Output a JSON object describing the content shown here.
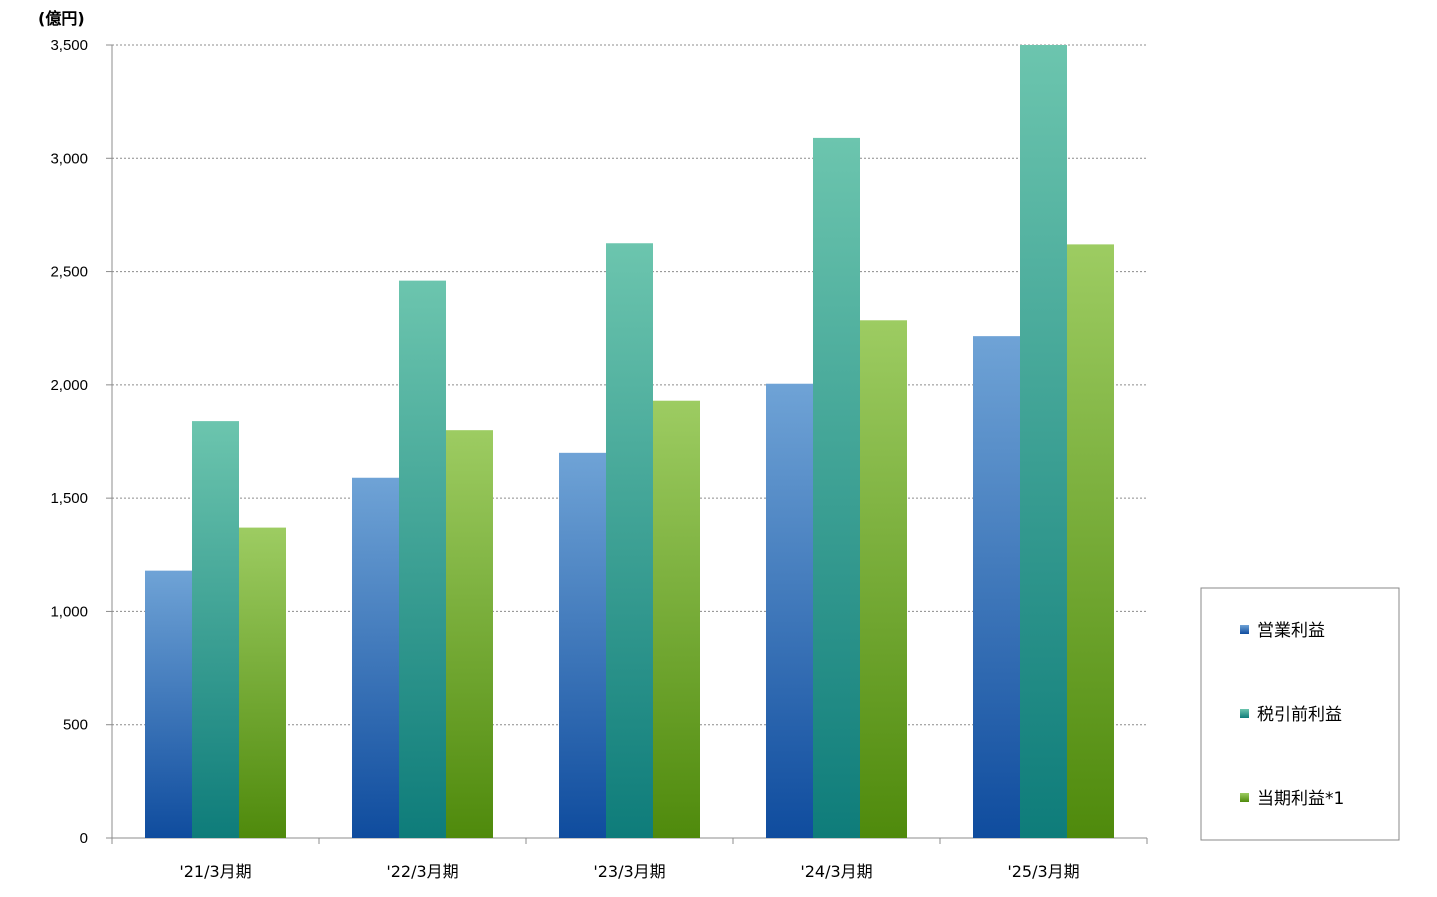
{
  "chart_data": {
    "type": "bar",
    "title": "",
    "unit_label": "(億円)",
    "xlabel": "",
    "ylabel": "",
    "categories": [
      "'21/3月期",
      "'22/3月期",
      "'23/3月期",
      "'24/3月期",
      "'25/3月期"
    ],
    "series": [
      {
        "name": "営業利益",
        "values": [
          1180,
          1590,
          1700,
          2005,
          2215
        ],
        "color_top": "#6fa3d6",
        "color_bottom": "#0f4c9e"
      },
      {
        "name": "税引前利益",
        "values": [
          1840,
          2460,
          2625,
          3090,
          3500
        ],
        "color_top": "#6cc5ae",
        "color_bottom": "#0e7c7a"
      },
      {
        "name": "当期利益*1",
        "values": [
          1370,
          1800,
          1930,
          2285,
          2620
        ],
        "color_top": "#9dcc62",
        "color_bottom": "#4f8a0c"
      }
    ],
    "ylim": [
      0,
      3500
    ],
    "yticks": [
      0,
      500,
      1000,
      1500,
      2000,
      2500,
      3000,
      3500
    ],
    "ytick_labels": [
      "0",
      "500",
      "1,000",
      "1,500",
      "2,000",
      "2,500",
      "3,000",
      "3,500"
    ],
    "grid": true,
    "legend_position": "right-bottom"
  }
}
